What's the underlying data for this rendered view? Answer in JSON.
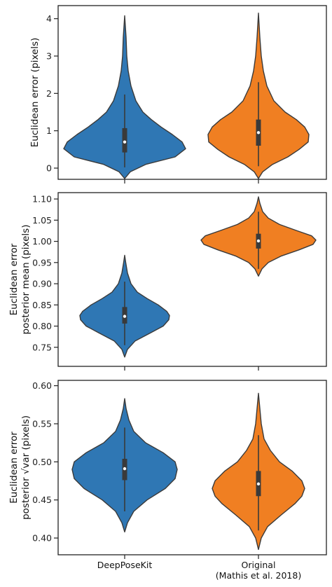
{
  "chart_data": [
    {
      "type": "violin",
      "ylabel_lines": [
        "Euclidean error (pixels)"
      ],
      "ylim": [
        -0.3,
        4.35
      ],
      "yticks": [
        0,
        1,
        2,
        3,
        4
      ],
      "ytick_labels": [
        "0",
        "1",
        "2",
        "3",
        "4"
      ],
      "series": [
        {
          "category": "DeepPoseKit",
          "color": "#2f77b4",
          "min": -0.28,
          "max": 4.08,
          "q1": 0.42,
          "median": 0.7,
          "q3": 1.07,
          "whisker_low": 0.02,
          "whisker_high": 1.97,
          "density": [
            [
              -0.28,
              0.0
            ],
            [
              -0.1,
              0.08
            ],
            [
              0.1,
              0.3
            ],
            [
              0.3,
              0.72
            ],
            [
              0.52,
              0.87
            ],
            [
              0.7,
              0.82
            ],
            [
              0.9,
              0.68
            ],
            [
              1.1,
              0.52
            ],
            [
              1.3,
              0.38
            ],
            [
              1.5,
              0.26
            ],
            [
              1.8,
              0.16
            ],
            [
              2.2,
              0.09
            ],
            [
              2.6,
              0.05
            ],
            [
              3.0,
              0.03
            ],
            [
              3.5,
              0.02
            ],
            [
              4.08,
              0.0
            ]
          ]
        },
        {
          "category": "Original",
          "color": "#f07f22",
          "min": -0.28,
          "max": 4.15,
          "q1": 0.6,
          "median": 0.95,
          "q3": 1.3,
          "whisker_low": 0.05,
          "whisker_high": 2.3,
          "density": [
            [
              -0.28,
              0.0
            ],
            [
              -0.1,
              0.06
            ],
            [
              0.1,
              0.2
            ],
            [
              0.3,
              0.42
            ],
            [
              0.5,
              0.58
            ],
            [
              0.7,
              0.71
            ],
            [
              0.9,
              0.72
            ],
            [
              1.1,
              0.66
            ],
            [
              1.3,
              0.54
            ],
            [
              1.5,
              0.38
            ],
            [
              1.8,
              0.22
            ],
            [
              2.2,
              0.12
            ],
            [
              2.6,
              0.07
            ],
            [
              3.0,
              0.04
            ],
            [
              3.5,
              0.02
            ],
            [
              4.15,
              0.0
            ]
          ]
        }
      ]
    },
    {
      "type": "violin",
      "ylabel_lines": [
        "Euclidean error",
        "posterior mean (pixels)"
      ],
      "ylim": [
        0.705,
        1.115
      ],
      "yticks": [
        0.75,
        0.8,
        0.85,
        0.9,
        0.95,
        1.0,
        1.05,
        1.1
      ],
      "ytick_labels": [
        "0.75",
        "0.80",
        "0.85",
        "0.90",
        "0.95",
        "1.00",
        "1.05",
        "1.10"
      ],
      "series": [
        {
          "category": "DeepPoseKit",
          "color": "#2f77b4",
          "min": 0.727,
          "max": 0.967,
          "q1": 0.806,
          "median": 0.823,
          "q3": 0.845,
          "whisker_low": 0.755,
          "whisker_high": 0.905,
          "density": [
            [
              0.727,
              0.0
            ],
            [
              0.745,
              0.04
            ],
            [
              0.765,
              0.15
            ],
            [
              0.785,
              0.38
            ],
            [
              0.8,
              0.55
            ],
            [
              0.815,
              0.63
            ],
            [
              0.825,
              0.64
            ],
            [
              0.835,
              0.6
            ],
            [
              0.85,
              0.48
            ],
            [
              0.865,
              0.32
            ],
            [
              0.88,
              0.18
            ],
            [
              0.9,
              0.09
            ],
            [
              0.925,
              0.04
            ],
            [
              0.95,
              0.015
            ],
            [
              0.967,
              0.0
            ]
          ]
        },
        {
          "category": "Original",
          "color": "#f07f22",
          "min": 0.918,
          "max": 1.105,
          "q1": 0.983,
          "median": 1.001,
          "q3": 1.018,
          "whisker_low": 0.935,
          "whisker_high": 1.07,
          "density": [
            [
              0.918,
              0.0
            ],
            [
              0.935,
              0.05
            ],
            [
              0.95,
              0.14
            ],
            [
              0.965,
              0.32
            ],
            [
              0.98,
              0.58
            ],
            [
              0.993,
              0.78
            ],
            [
              1.003,
              0.82
            ],
            [
              1.013,
              0.76
            ],
            [
              1.025,
              0.55
            ],
            [
              1.04,
              0.3
            ],
            [
              1.055,
              0.14
            ],
            [
              1.07,
              0.06
            ],
            [
              1.09,
              0.02
            ],
            [
              1.105,
              0.0
            ]
          ]
        }
      ]
    },
    {
      "type": "violin",
      "ylabel_lines": [
        "Euclidean error",
        "posterior √var (pixels)"
      ],
      "ylim": [
        0.378,
        0.607
      ],
      "yticks": [
        0.4,
        0.45,
        0.5,
        0.55,
        0.6
      ],
      "ytick_labels": [
        "0.40",
        "0.45",
        "0.50",
        "0.55",
        "0.60"
      ],
      "series": [
        {
          "category": "DeepPoseKit",
          "color": "#2f77b4",
          "min": 0.408,
          "max": 0.583,
          "q1": 0.476,
          "median": 0.491,
          "q3": 0.504,
          "whisker_low": 0.435,
          "whisker_high": 0.545,
          "density": [
            [
              0.408,
              0.0
            ],
            [
              0.42,
              0.04
            ],
            [
              0.435,
              0.13
            ],
            [
              0.45,
              0.32
            ],
            [
              0.465,
              0.58
            ],
            [
              0.478,
              0.72
            ],
            [
              0.49,
              0.75
            ],
            [
              0.5,
              0.72
            ],
            [
              0.512,
              0.55
            ],
            [
              0.525,
              0.3
            ],
            [
              0.54,
              0.13
            ],
            [
              0.555,
              0.06
            ],
            [
              0.57,
              0.02
            ],
            [
              0.583,
              0.0
            ]
          ]
        },
        {
          "category": "Original",
          "color": "#f07f22",
          "min": 0.385,
          "max": 0.59,
          "q1": 0.455,
          "median": 0.471,
          "q3": 0.488,
          "whisker_low": 0.41,
          "whisker_high": 0.535,
          "density": [
            [
              0.385,
              0.0
            ],
            [
              0.4,
              0.04
            ],
            [
              0.415,
              0.13
            ],
            [
              0.43,
              0.32
            ],
            [
              0.445,
              0.52
            ],
            [
              0.455,
              0.62
            ],
            [
              0.465,
              0.66
            ],
            [
              0.475,
              0.62
            ],
            [
              0.488,
              0.48
            ],
            [
              0.5,
              0.3
            ],
            [
              0.515,
              0.17
            ],
            [
              0.53,
              0.08
            ],
            [
              0.55,
              0.04
            ],
            [
              0.57,
              0.02
            ],
            [
              0.59,
              0.0
            ]
          ]
        }
      ]
    }
  ],
  "x_categories": [
    "DeepPoseKit",
    "Original"
  ],
  "x_category_labels": [
    [
      "DeepPoseKit"
    ],
    [
      "Original",
      "(Mathis et al. 2018)"
    ]
  ]
}
